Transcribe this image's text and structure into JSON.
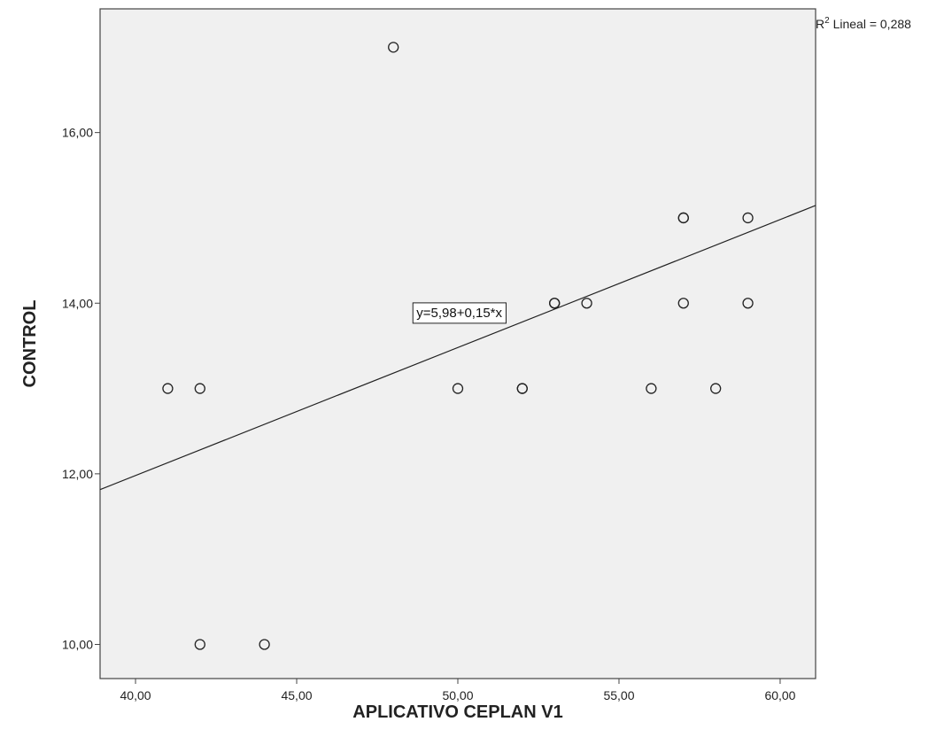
{
  "chart_data": {
    "type": "scatter",
    "xlabel": "APLICATIVO CEPLAN  V1",
    "ylabel": "CONTROL",
    "xlim": [
      38.9,
      61.1
    ],
    "ylim": [
      9.6,
      17.45
    ],
    "x_ticks": [
      40,
      45,
      50,
      55,
      60
    ],
    "x_tick_labels": [
      "40,00",
      "45,00",
      "50,00",
      "55,00",
      "60,00"
    ],
    "y_ticks": [
      10,
      12,
      14,
      16
    ],
    "y_tick_labels": [
      "10,00",
      "12,00",
      "14,00",
      "16,00"
    ],
    "grid": false,
    "points": [
      {
        "x": 41,
        "y": 13
      },
      {
        "x": 42,
        "y": 13
      },
      {
        "x": 42,
        "y": 10
      },
      {
        "x": 44,
        "y": 10
      },
      {
        "x": 48,
        "y": 17
      },
      {
        "x": 50,
        "y": 13
      },
      {
        "x": 52,
        "y": 13
      },
      {
        "x": 52,
        "y": 13
      },
      {
        "x": 53,
        "y": 14
      },
      {
        "x": 53,
        "y": 14
      },
      {
        "x": 54,
        "y": 14
      },
      {
        "x": 56,
        "y": 13
      },
      {
        "x": 57,
        "y": 15
      },
      {
        "x": 57,
        "y": 15
      },
      {
        "x": 57,
        "y": 14
      },
      {
        "x": 58,
        "y": 13
      },
      {
        "x": 59,
        "y": 15
      },
      {
        "x": 59,
        "y": 14
      }
    ],
    "fit_line": {
      "intercept": 5.98,
      "slope": 0.15,
      "equation_label": "y=5,98+0,15*x",
      "r2_prefix": "R",
      "r2_superscript": "2",
      "r2_rest": " Lineal = 0,288"
    },
    "colors": {
      "plot_background": "#f0f0f0",
      "axis": "#444444",
      "marker_stroke": "#222222",
      "line": "#222222"
    }
  }
}
